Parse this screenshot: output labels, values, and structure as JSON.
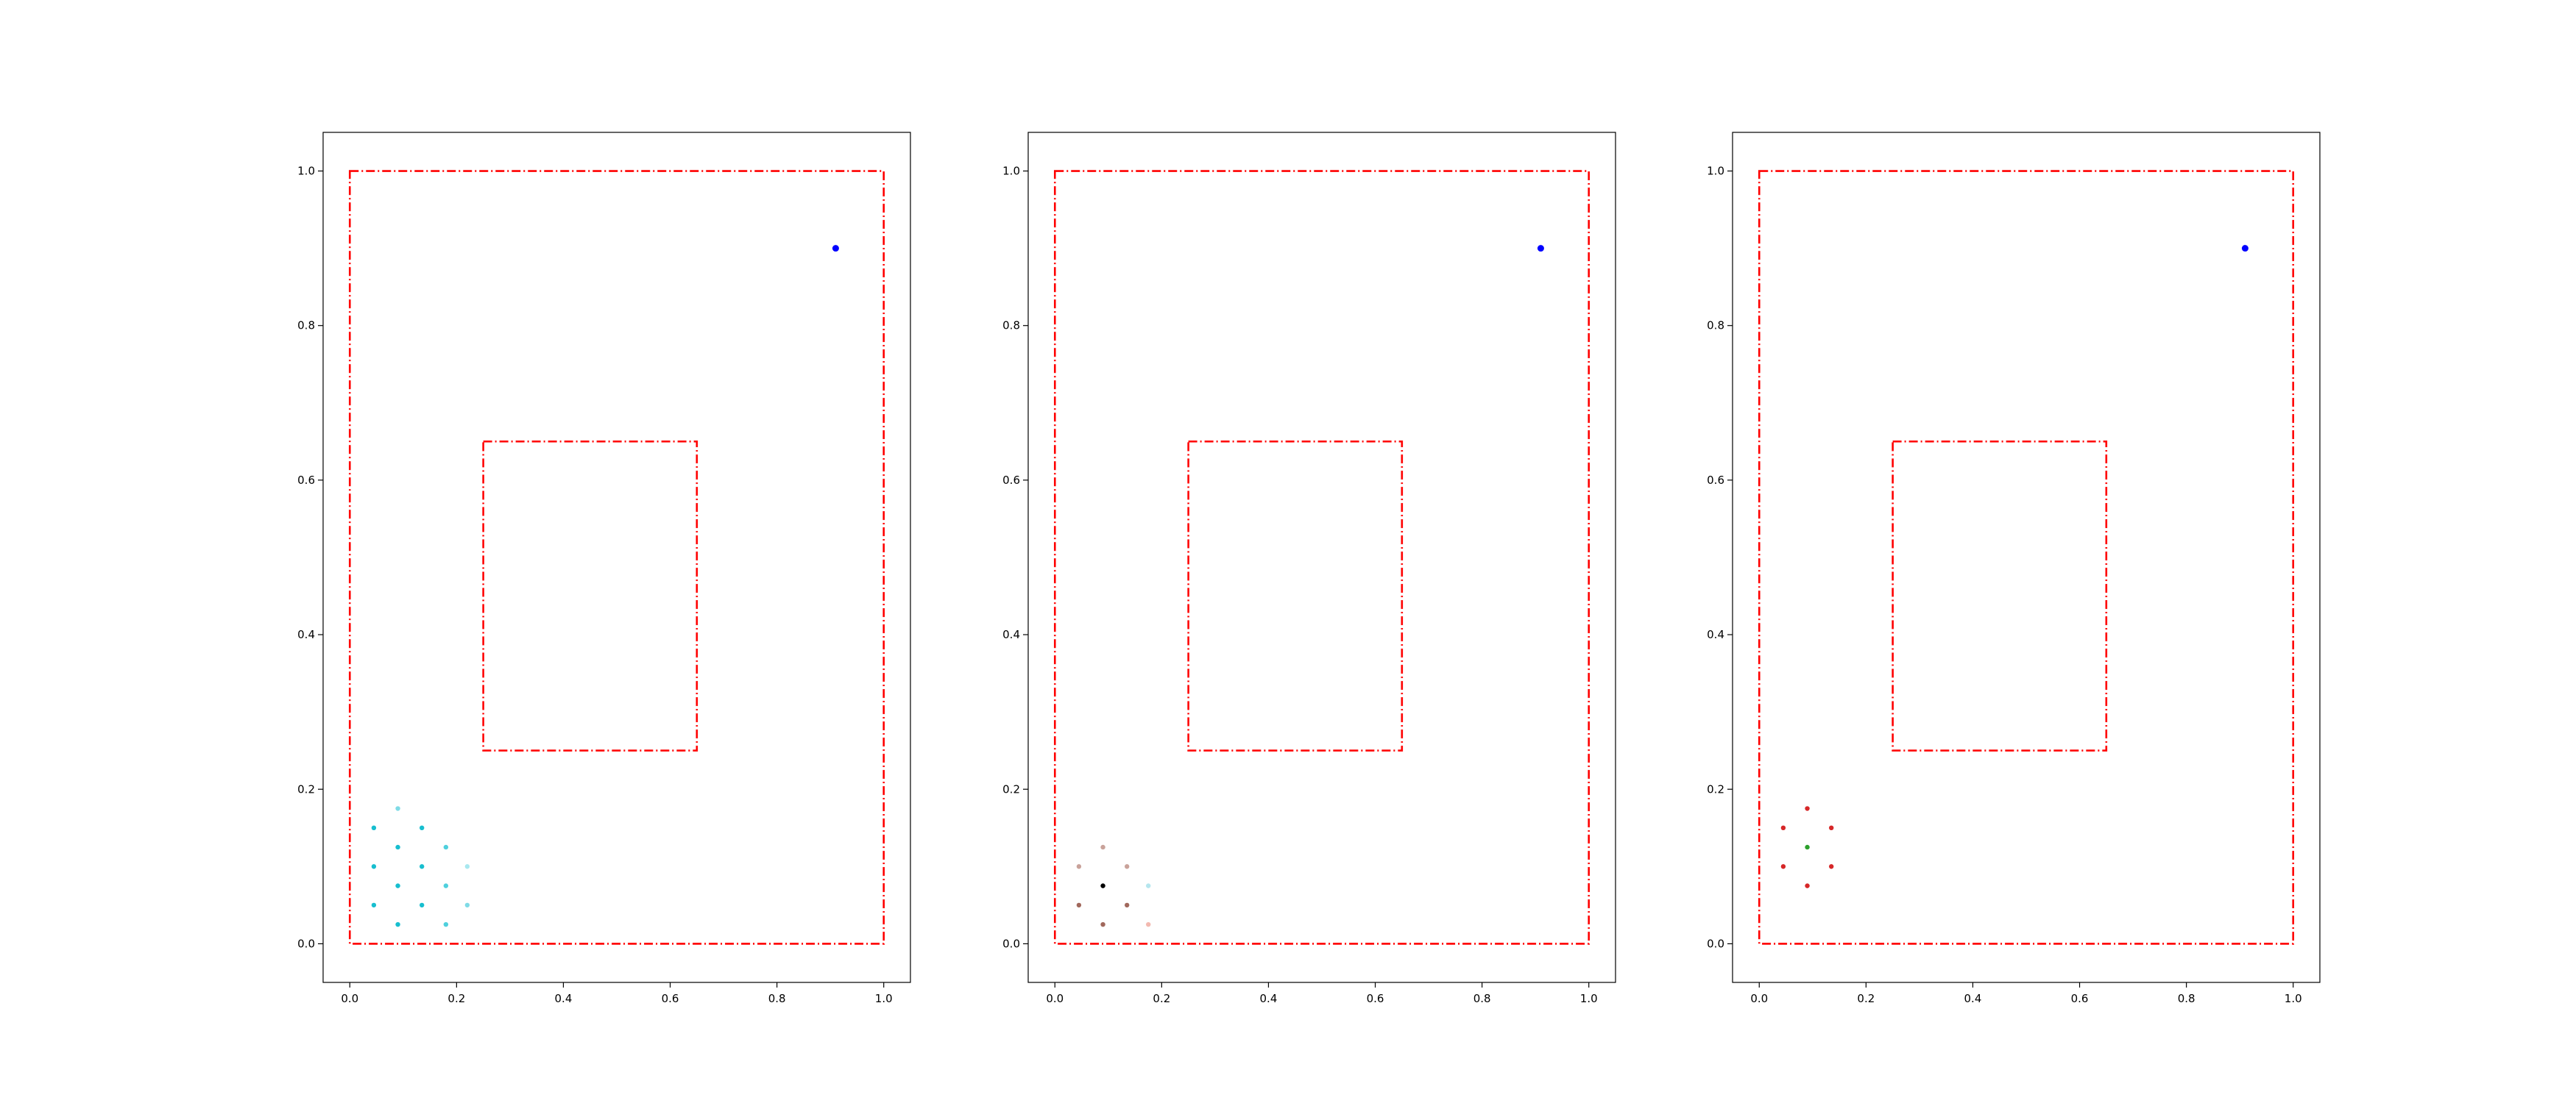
{
  "figure": {
    "background": "#ffffff",
    "panel_count": 3
  },
  "chart_data": [
    {
      "type": "scatter",
      "title": "",
      "xlabel": "",
      "ylabel": "",
      "xlim": [
        -0.05,
        1.05
      ],
      "ylim": [
        -0.05,
        1.05
      ],
      "xticks": [
        "0.0",
        "0.2",
        "0.4",
        "0.6",
        "0.8",
        "1.0"
      ],
      "yticks": [
        "0.0",
        "0.2",
        "0.4",
        "0.6",
        "0.8",
        "1.0"
      ],
      "grid": false,
      "rectangles": [
        {
          "x0": 0.0,
          "y0": 0.0,
          "x1": 1.0,
          "y1": 1.0,
          "color": "#ff0000",
          "linestyle": "dash-dot"
        },
        {
          "x0": 0.25,
          "y0": 0.25,
          "x1": 0.65,
          "y1": 0.65,
          "color": "#ff0000",
          "linestyle": "dash-dot"
        }
      ],
      "series": [
        {
          "points": [
            {
              "x": 0.045,
              "y": 0.15,
              "color": "#17becf"
            },
            {
              "x": 0.045,
              "y": 0.1,
              "color": "#17becf"
            },
            {
              "x": 0.045,
              "y": 0.05,
              "color": "#17becf"
            },
            {
              "x": 0.09,
              "y": 0.175,
              "color": "#7fdbe6"
            },
            {
              "x": 0.09,
              "y": 0.125,
              "color": "#17becf"
            },
            {
              "x": 0.09,
              "y": 0.075,
              "color": "#17becf"
            },
            {
              "x": 0.09,
              "y": 0.025,
              "color": "#17becf"
            },
            {
              "x": 0.135,
              "y": 0.15,
              "color": "#17becf"
            },
            {
              "x": 0.135,
              "y": 0.1,
              "color": "#17becf"
            },
            {
              "x": 0.135,
              "y": 0.05,
              "color": "#17becf"
            },
            {
              "x": 0.18,
              "y": 0.125,
              "color": "#4fd0dd"
            },
            {
              "x": 0.18,
              "y": 0.075,
              "color": "#4fd0dd"
            },
            {
              "x": 0.18,
              "y": 0.025,
              "color": "#4fd0dd"
            },
            {
              "x": 0.22,
              "y": 0.1,
              "color": "#a8e8ef"
            },
            {
              "x": 0.22,
              "y": 0.05,
              "color": "#7fdbe6"
            }
          ]
        },
        {
          "points": [
            {
              "x": 0.91,
              "y": 0.9,
              "color": "#0000ff"
            }
          ]
        }
      ]
    },
    {
      "type": "scatter",
      "title": "",
      "xlabel": "",
      "ylabel": "",
      "xlim": [
        -0.05,
        1.05
      ],
      "ylim": [
        -0.05,
        1.05
      ],
      "xticks": [
        "0.0",
        "0.2",
        "0.4",
        "0.6",
        "0.8",
        "1.0"
      ],
      "yticks": [
        "0.0",
        "0.2",
        "0.4",
        "0.6",
        "0.8",
        "1.0"
      ],
      "grid": false,
      "rectangles": [
        {
          "x0": 0.0,
          "y0": 0.0,
          "x1": 1.0,
          "y1": 1.0,
          "color": "#ff0000",
          "linestyle": "dash-dot"
        },
        {
          "x0": 0.25,
          "y0": 0.25,
          "x1": 0.65,
          "y1": 0.65,
          "color": "#ff0000",
          "linestyle": "dash-dot"
        }
      ],
      "series": [
        {
          "points": [
            {
              "x": 0.045,
              "y": 0.1,
              "color": "#c9a29a"
            },
            {
              "x": 0.045,
              "y": 0.05,
              "color": "#a1685c"
            },
            {
              "x": 0.09,
              "y": 0.125,
              "color": "#c9a29a"
            },
            {
              "x": 0.09,
              "y": 0.075,
              "color": "#000000"
            },
            {
              "x": 0.09,
              "y": 0.025,
              "color": "#a1685c"
            },
            {
              "x": 0.135,
              "y": 0.1,
              "color": "#c9a29a"
            },
            {
              "x": 0.135,
              "y": 0.05,
              "color": "#a1685c"
            },
            {
              "x": 0.175,
              "y": 0.075,
              "color": "#b5e6ee"
            },
            {
              "x": 0.175,
              "y": 0.025,
              "color": "#f3b9b0"
            }
          ]
        },
        {
          "points": [
            {
              "x": 0.91,
              "y": 0.9,
              "color": "#0000ff"
            }
          ]
        }
      ]
    },
    {
      "type": "scatter",
      "title": "",
      "xlabel": "",
      "ylabel": "",
      "xlim": [
        -0.05,
        1.05
      ],
      "ylim": [
        -0.05,
        1.05
      ],
      "xticks": [
        "0.0",
        "0.2",
        "0.4",
        "0.6",
        "0.8",
        "1.0"
      ],
      "yticks": [
        "0.0",
        "0.2",
        "0.4",
        "0.6",
        "0.8",
        "1.0"
      ],
      "grid": false,
      "rectangles": [
        {
          "x0": 0.0,
          "y0": 0.0,
          "x1": 1.0,
          "y1": 1.0,
          "color": "#ff0000",
          "linestyle": "dash-dot"
        },
        {
          "x0": 0.25,
          "y0": 0.25,
          "x1": 0.65,
          "y1": 0.65,
          "color": "#ff0000",
          "linestyle": "dash-dot"
        }
      ],
      "series": [
        {
          "points": [
            {
              "x": 0.045,
              "y": 0.15,
              "color": "#d62728"
            },
            {
              "x": 0.045,
              "y": 0.1,
              "color": "#d62728"
            },
            {
              "x": 0.09,
              "y": 0.175,
              "color": "#d62728"
            },
            {
              "x": 0.09,
              "y": 0.125,
              "color": "#2ca02c"
            },
            {
              "x": 0.09,
              "y": 0.075,
              "color": "#d62728"
            },
            {
              "x": 0.135,
              "y": 0.15,
              "color": "#d62728"
            },
            {
              "x": 0.135,
              "y": 0.1,
              "color": "#d62728"
            }
          ]
        },
        {
          "points": [
            {
              "x": 0.91,
              "y": 0.9,
              "color": "#0000ff"
            }
          ]
        }
      ]
    }
  ]
}
